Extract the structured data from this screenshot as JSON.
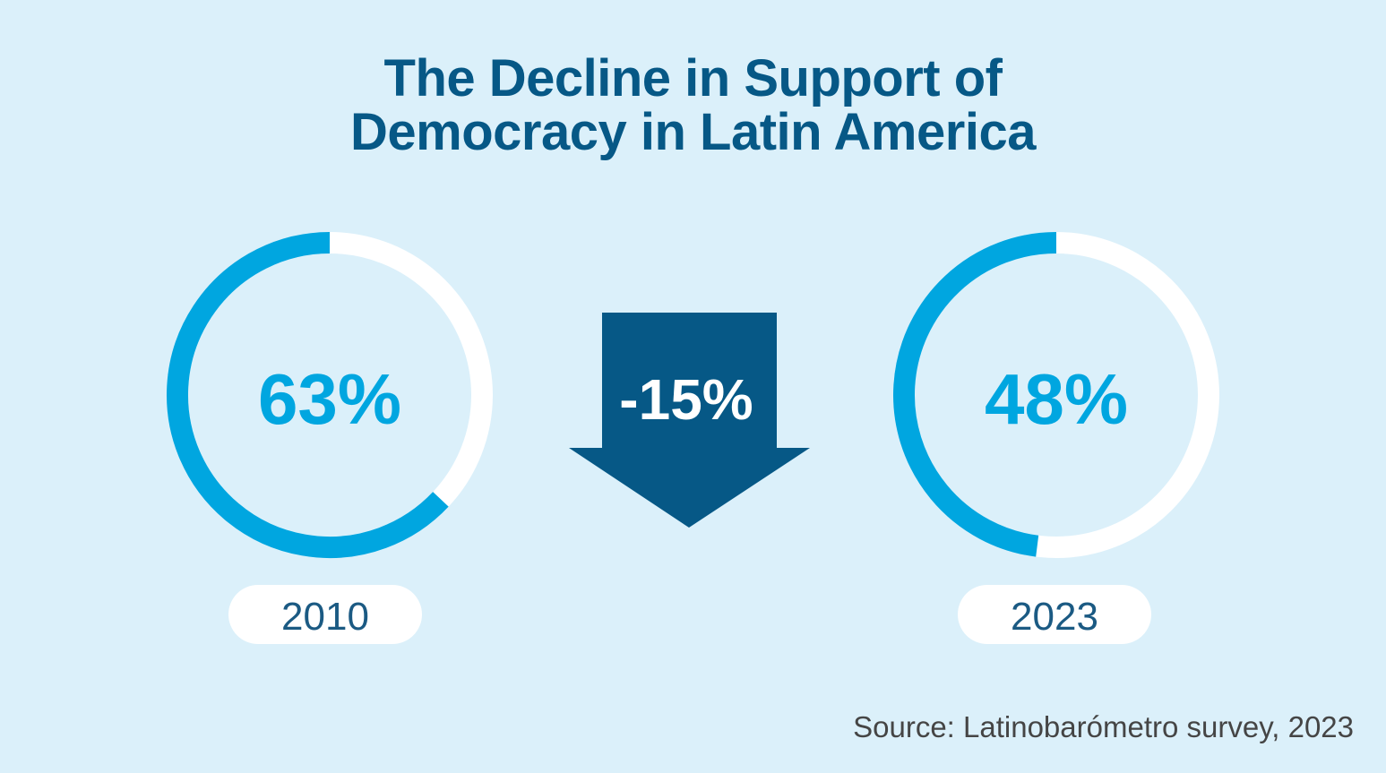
{
  "title_line1": "The Decline in Support of",
  "title_line2": "Democracy in Latin America",
  "source": "Source: Latinobarómetro survey, 2023",
  "colors": {
    "background": "#dbf0fa",
    "accent": "#00a6e0",
    "dark": "#065886",
    "ring_track": "#ffffff"
  },
  "chart_data": {
    "type": "pie",
    "series": [
      {
        "year": "2010",
        "value": 63,
        "label": "63%"
      },
      {
        "year": "2023",
        "value": 48,
        "label": "48%"
      }
    ],
    "change": {
      "value": -15,
      "label": "-15%"
    }
  }
}
